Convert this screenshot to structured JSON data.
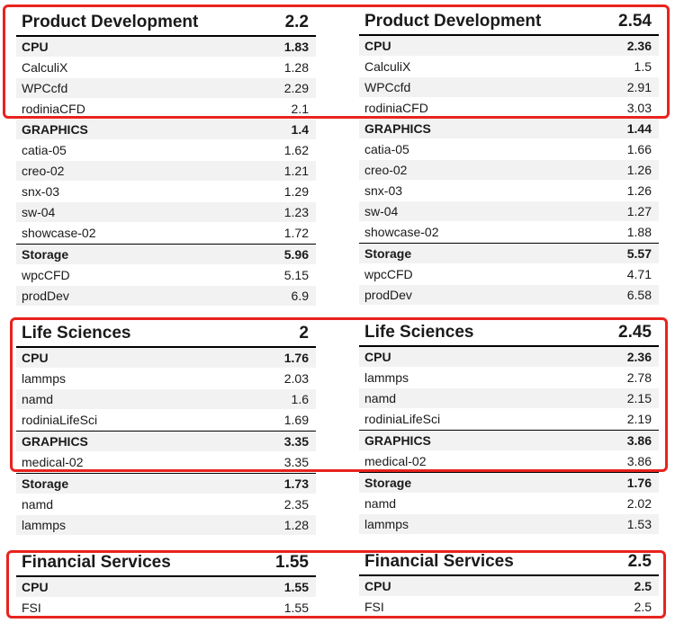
{
  "blocks": [
    {
      "title": "Product Development",
      "total": "2.2",
      "rows": [
        {
          "label": "CPU",
          "value": "1.83",
          "cat": true
        },
        {
          "label": "CalculiX",
          "value": "1.28"
        },
        {
          "label": "WPCcfd",
          "value": "2.29"
        },
        {
          "label": "rodiniaCFD",
          "value": "2.1"
        },
        {
          "label": "GRAPHICS",
          "value": "1.4",
          "cat": true
        },
        {
          "label": "catia-05",
          "value": "1.62"
        },
        {
          "label": "creo-02",
          "value": "1.21"
        },
        {
          "label": "snx-03",
          "value": "1.29"
        },
        {
          "label": "sw-04",
          "value": "1.23"
        },
        {
          "label": "showcase-02",
          "value": "1.72"
        },
        {
          "label": "Storage",
          "value": "5.96",
          "cat": true
        },
        {
          "label": "wpcCFD",
          "value": "5.15"
        },
        {
          "label": "prodDev",
          "value": "6.9"
        }
      ]
    },
    {
      "title": "Product Development",
      "total": "2.54",
      "rows": [
        {
          "label": "CPU",
          "value": "2.36",
          "cat": true
        },
        {
          "label": "CalculiX",
          "value": "1.5"
        },
        {
          "label": "WPCcfd",
          "value": "2.91"
        },
        {
          "label": "rodiniaCFD",
          "value": "3.03"
        },
        {
          "label": "GRAPHICS",
          "value": "1.44",
          "cat": true
        },
        {
          "label": "catia-05",
          "value": "1.66"
        },
        {
          "label": "creo-02",
          "value": "1.26"
        },
        {
          "label": "snx-03",
          "value": "1.26"
        },
        {
          "label": "sw-04",
          "value": "1.27"
        },
        {
          "label": "showcase-02",
          "value": "1.88"
        },
        {
          "label": "Storage",
          "value": "5.57",
          "cat": true
        },
        {
          "label": "wpcCFD",
          "value": "4.71"
        },
        {
          "label": "prodDev",
          "value": "6.58"
        }
      ]
    },
    {
      "title": "Life Sciences",
      "total": "2",
      "rows": [
        {
          "label": "CPU",
          "value": "1.76",
          "cat": true
        },
        {
          "label": "lammps",
          "value": "2.03"
        },
        {
          "label": "namd",
          "value": "1.6"
        },
        {
          "label": "rodiniaLifeSci",
          "value": "1.69"
        },
        {
          "label": "GRAPHICS",
          "value": "3.35",
          "cat": true
        },
        {
          "label": "medical-02",
          "value": "3.35"
        },
        {
          "label": "Storage",
          "value": "1.73",
          "cat": true
        },
        {
          "label": "namd",
          "value": "2.35"
        },
        {
          "label": "lammps",
          "value": "1.28"
        }
      ]
    },
    {
      "title": "Life Sciences",
      "total": "2.45",
      "rows": [
        {
          "label": "CPU",
          "value": "2.36",
          "cat": true
        },
        {
          "label": "lammps",
          "value": "2.78"
        },
        {
          "label": "namd",
          "value": "2.15"
        },
        {
          "label": "rodiniaLifeSci",
          "value": "2.19"
        },
        {
          "label": "GRAPHICS",
          "value": "3.86",
          "cat": true
        },
        {
          "label": "medical-02",
          "value": "3.86"
        },
        {
          "label": "Storage",
          "value": "1.76",
          "cat": true
        },
        {
          "label": "namd",
          "value": "2.02"
        },
        {
          "label": "lammps",
          "value": "1.53"
        }
      ]
    },
    {
      "title": "Financial Services",
      "total": "1.55",
      "rows": [
        {
          "label": "CPU",
          "value": "1.55",
          "cat": true
        },
        {
          "label": "FSI",
          "value": "1.55"
        }
      ]
    },
    {
      "title": "Financial Services",
      "total": "2.5",
      "rows": [
        {
          "label": "CPU",
          "value": "2.5",
          "cat": true
        },
        {
          "label": "FSI",
          "value": "2.5"
        }
      ]
    }
  ],
  "highlight_color": "#e8231e"
}
